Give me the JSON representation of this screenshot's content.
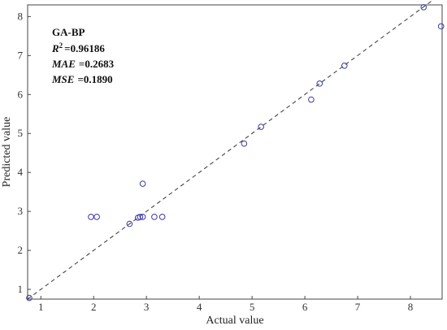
{
  "chart_data": {
    "type": "scatter",
    "title": "",
    "xlabel": "Actual value",
    "ylabel": "Predicted value",
    "xlim": [
      0.75,
      8.6
    ],
    "ylim": [
      0.75,
      8.3
    ],
    "xticks": [
      "1",
      "2",
      "3",
      "4",
      "5",
      "6",
      "7",
      "8"
    ],
    "yticks": [
      "1",
      "2",
      "3",
      "4",
      "5",
      "6",
      "7",
      "8"
    ],
    "grid": false,
    "reference_line": {
      "style": "dashed",
      "from": [
        0.75,
        0.75
      ],
      "to": [
        8.6,
        8.6
      ]
    },
    "marker_color": "#3a3aa8",
    "points": [
      {
        "x": 0.78,
        "y": 0.78
      },
      {
        "x": 1.95,
        "y": 2.86
      },
      {
        "x": 2.06,
        "y": 2.86
      },
      {
        "x": 2.68,
        "y": 2.68
      },
      {
        "x": 2.84,
        "y": 2.84
      },
      {
        "x": 2.88,
        "y": 2.86
      },
      {
        "x": 2.93,
        "y": 2.86
      },
      {
        "x": 2.93,
        "y": 3.71
      },
      {
        "x": 3.15,
        "y": 2.86
      },
      {
        "x": 3.3,
        "y": 2.86
      },
      {
        "x": 4.85,
        "y": 4.74
      },
      {
        "x": 5.17,
        "y": 5.17
      },
      {
        "x": 6.12,
        "y": 5.87
      },
      {
        "x": 6.28,
        "y": 6.28
      },
      {
        "x": 6.75,
        "y": 6.74
      },
      {
        "x": 8.25,
        "y": 8.24
      },
      {
        "x": 8.58,
        "y": 7.75
      }
    ],
    "annotation": {
      "model": "GA-BP",
      "r2_label": "R",
      "r2_sup": "2",
      "r2_value": "=0.96186",
      "mae_label": "MAE",
      "mae_value": "=0.2683",
      "mse_label": "MSE",
      "mse_value": "=0.1890"
    }
  }
}
